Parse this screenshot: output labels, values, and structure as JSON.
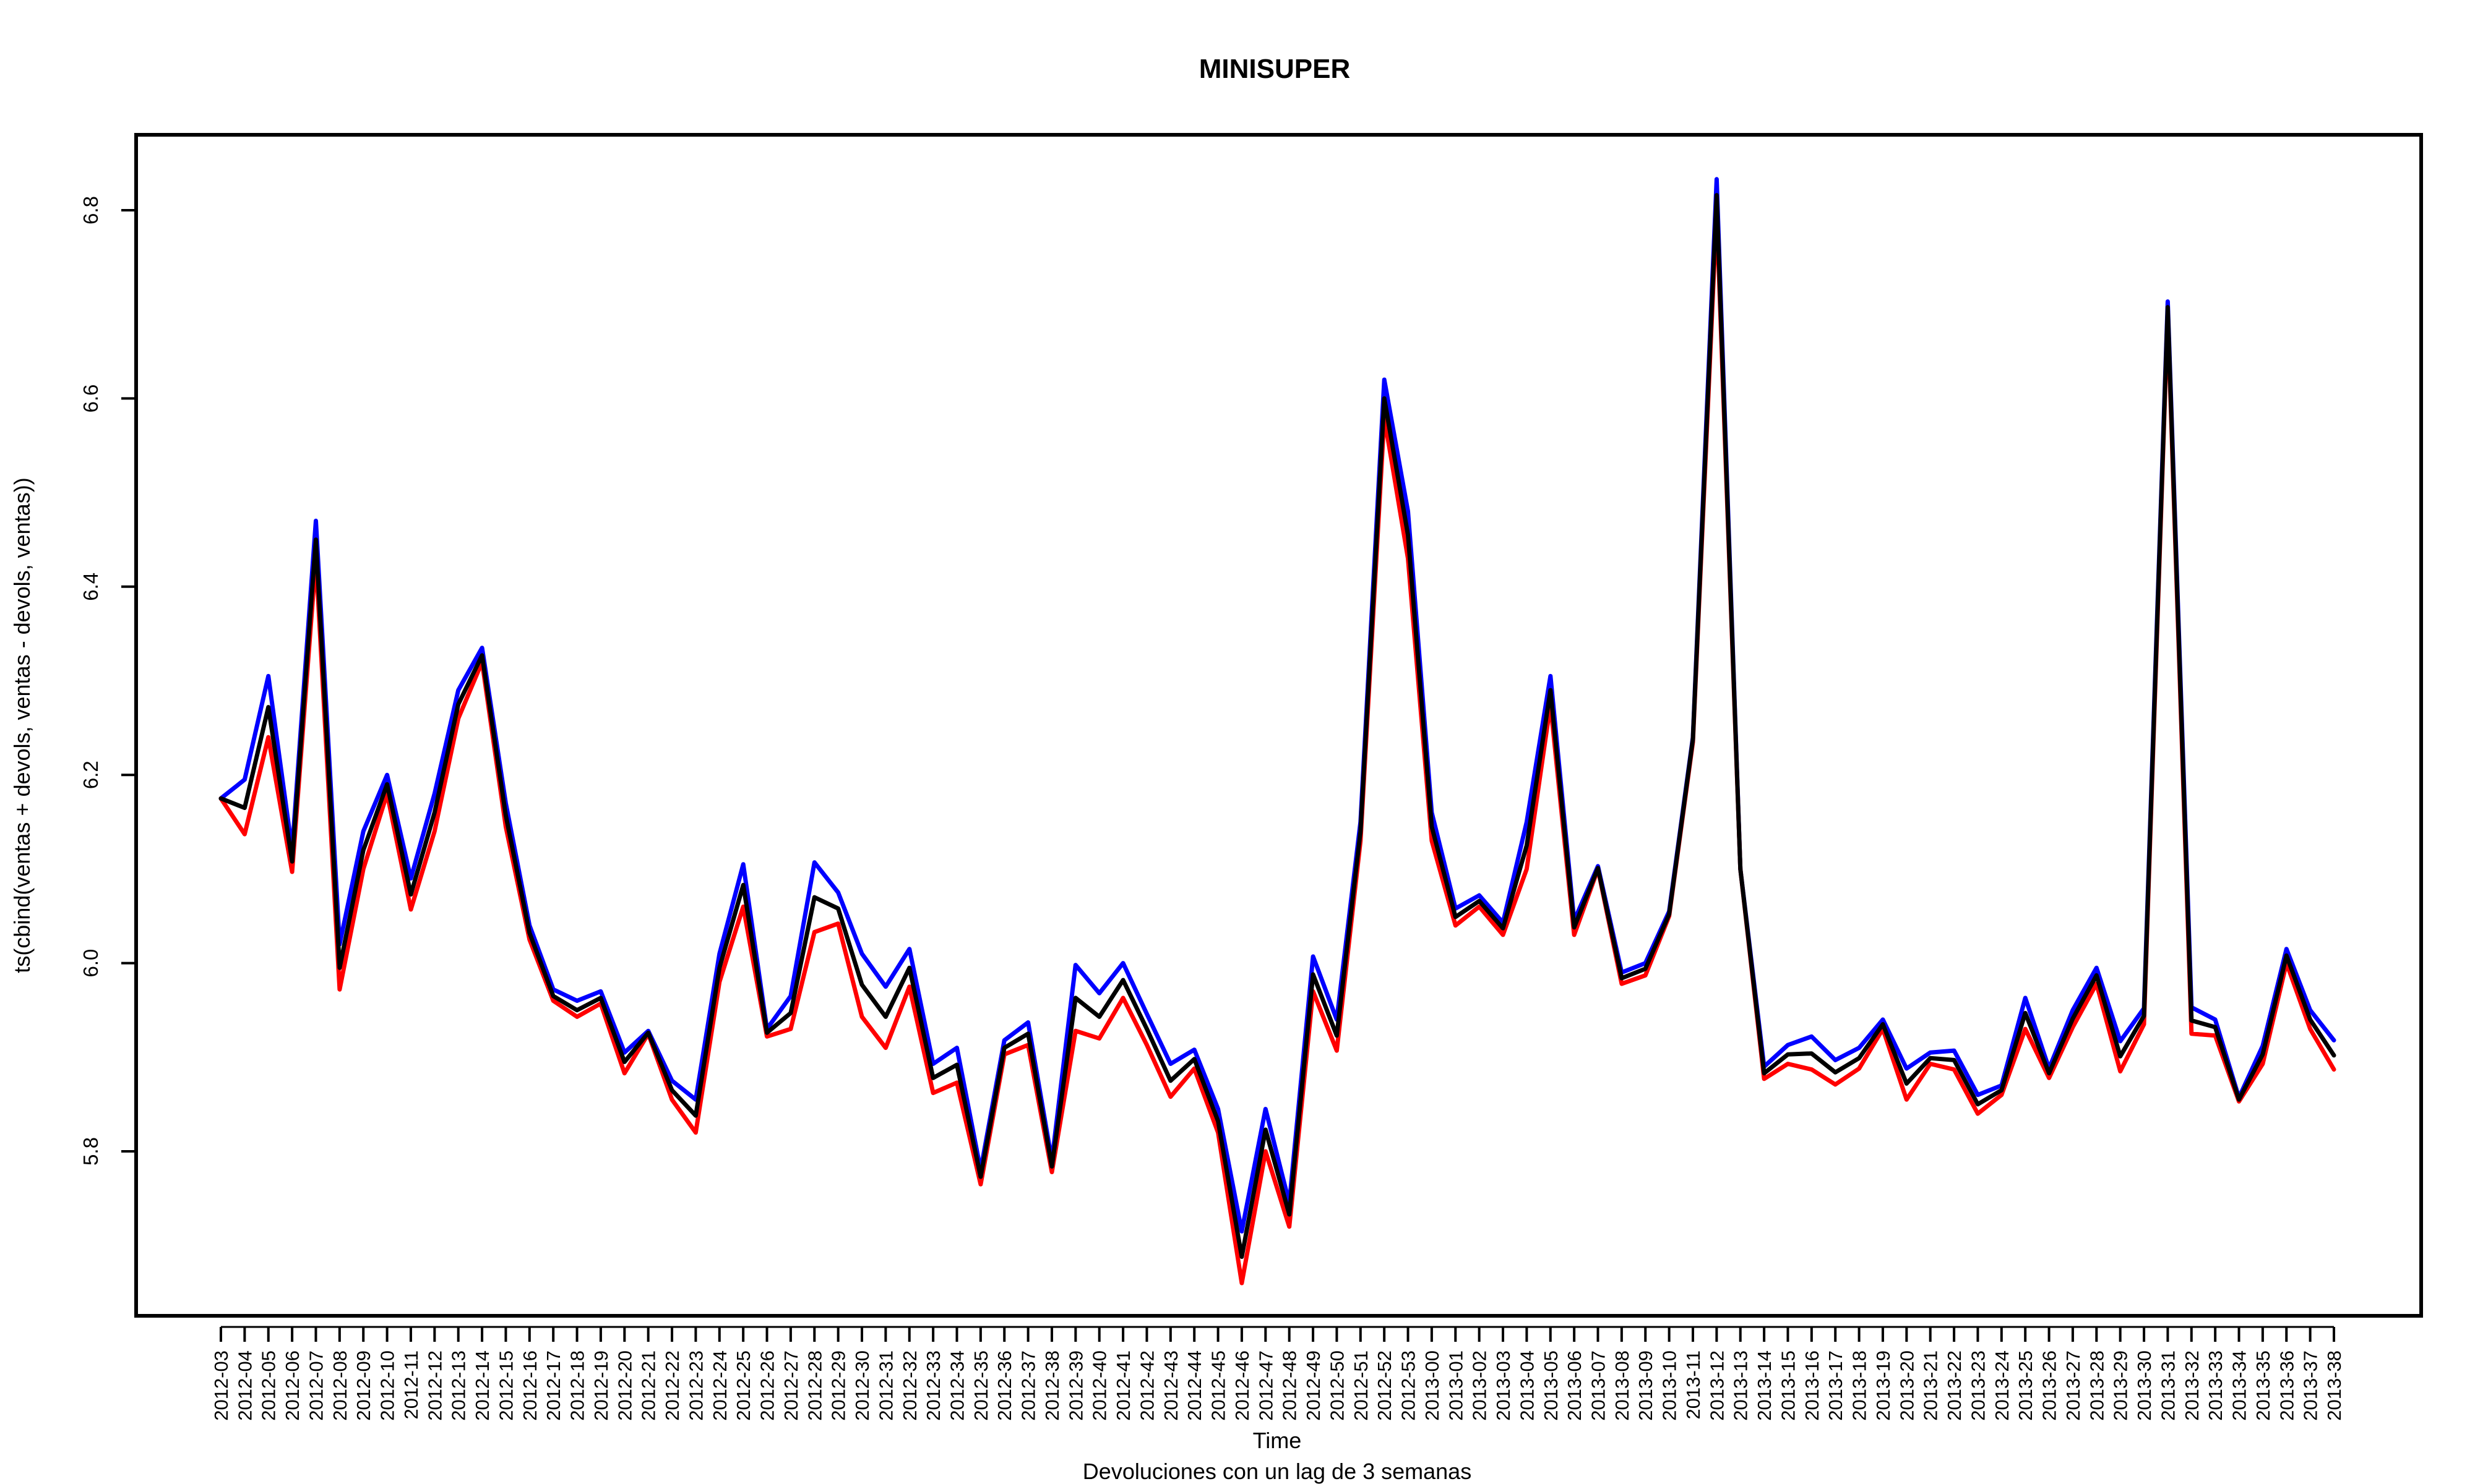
{
  "chart_data": {
    "type": "line",
    "title": "MINISUPER",
    "xlabel": "Time",
    "subtitle": "Devoluciones con un lag de 3 semanas",
    "ylabel": "ts(cbind(ventas + devols, ventas - devols, ventas))",
    "ylim": [
      5.63,
      6.87
    ],
    "yticks": [
      5.8,
      6.0,
      6.2,
      6.4,
      6.6,
      6.8
    ],
    "ytick_labels": [
      "5.8",
      "6.0",
      "6.2",
      "6.4",
      "6.6",
      "6.8"
    ],
    "grid": false,
    "categories": [
      "2012-03",
      "2012-04",
      "2012-05",
      "2012-06",
      "2012-07",
      "2012-08",
      "2012-09",
      "2012-10",
      "2012-11",
      "2012-12",
      "2012-13",
      "2012-14",
      "2012-15",
      "2012-16",
      "2012-17",
      "2012-18",
      "2012-19",
      "2012-20",
      "2012-21",
      "2012-22",
      "2012-23",
      "2012-24",
      "2012-25",
      "2012-26",
      "2012-27",
      "2012-28",
      "2012-29",
      "2012-30",
      "2012-31",
      "2012-32",
      "2012-33",
      "2012-34",
      "2012-35",
      "2012-36",
      "2012-37",
      "2012-38",
      "2012-39",
      "2012-40",
      "2012-41",
      "2012-42",
      "2012-43",
      "2012-44",
      "2012-45",
      "2012-46",
      "2012-47",
      "2012-48",
      "2012-49",
      "2012-50",
      "2012-51",
      "2012-52",
      "2012-53",
      "2013-00",
      "2013-01",
      "2013-02",
      "2013-03",
      "2013-04",
      "2013-05",
      "2013-06",
      "2013-07",
      "2013-08",
      "2013-09",
      "2013-10",
      "2013-11",
      "2013-12",
      "2013-13",
      "2013-14",
      "2013-15",
      "2013-16",
      "2013-17",
      "2013-18",
      "2013-19",
      "2013-20",
      "2013-21",
      "2013-22",
      "2013-23",
      "2013-24",
      "2013-25",
      "2013-26",
      "2013-27",
      "2013-28",
      "2013-29",
      "2013-30",
      "2013-31",
      "2013-32",
      "2013-33",
      "2013-34",
      "2013-35",
      "2013-36",
      "2013-37",
      "2013-38"
    ],
    "series": [
      {
        "color": "#0000ff",
        "values": [
          6.175,
          6.195,
          6.305,
          6.12,
          6.47,
          6.02,
          6.14,
          6.2,
          6.09,
          6.18,
          6.29,
          6.335,
          6.17,
          6.04,
          5.972,
          5.96,
          5.97,
          5.905,
          5.928,
          5.875,
          5.855,
          6.01,
          6.105,
          5.93,
          5.965,
          6.107,
          6.075,
          6.01,
          5.975,
          6.015,
          5.893,
          5.91,
          5.78,
          5.918,
          5.937,
          5.79,
          5.998,
          5.968,
          6.0,
          5.946,
          5.893,
          5.908,
          5.845,
          5.715,
          5.845,
          5.745,
          6.007,
          5.94,
          6.15,
          6.62,
          6.48,
          6.16,
          6.058,
          6.072,
          6.043,
          6.15,
          6.305,
          6.045,
          6.103,
          5.99,
          6.0,
          6.055,
          6.24,
          6.833,
          6.1,
          5.89,
          5.913,
          5.922,
          5.897,
          5.91,
          5.94,
          5.888,
          5.905,
          5.907,
          5.86,
          5.87,
          5.963,
          5.888,
          5.95,
          5.995,
          5.917,
          5.952,
          6.703,
          5.953,
          5.94,
          5.857,
          5.912,
          6.015,
          5.95,
          5.918
        ]
      },
      {
        "color": "#ff0000",
        "values": [
          6.175,
          6.137,
          6.24,
          6.097,
          6.43,
          5.972,
          6.1,
          6.18,
          6.057,
          6.14,
          6.26,
          6.32,
          6.145,
          6.025,
          5.96,
          5.943,
          5.957,
          5.883,
          5.925,
          5.855,
          5.82,
          5.98,
          6.06,
          5.922,
          5.93,
          6.033,
          6.042,
          5.943,
          5.91,
          5.975,
          5.862,
          5.873,
          5.765,
          5.903,
          5.913,
          5.778,
          5.928,
          5.92,
          5.963,
          5.913,
          5.858,
          5.888,
          5.82,
          5.66,
          5.8,
          5.72,
          5.97,
          5.907,
          6.13,
          6.58,
          6.43,
          6.13,
          6.04,
          6.06,
          6.03,
          6.1,
          6.275,
          6.03,
          6.1,
          5.978,
          5.987,
          6.05,
          6.235,
          6.8,
          6.1,
          5.877,
          5.893,
          5.887,
          5.871,
          5.888,
          5.93,
          5.855,
          5.893,
          5.887,
          5.84,
          5.86,
          5.93,
          5.878,
          5.932,
          5.978,
          5.885,
          5.935,
          6.69,
          5.925,
          5.923,
          5.853,
          5.893,
          6.0,
          5.93,
          5.887
        ]
      },
      {
        "color": "#000000",
        "values": [
          6.175,
          6.165,
          6.272,
          6.108,
          6.45,
          5.995,
          6.12,
          6.19,
          6.073,
          6.16,
          6.275,
          6.327,
          6.157,
          6.032,
          5.965,
          5.95,
          5.963,
          5.895,
          5.926,
          5.865,
          5.838,
          5.995,
          6.083,
          5.926,
          5.947,
          6.07,
          6.058,
          5.977,
          5.943,
          5.995,
          5.878,
          5.892,
          5.773,
          5.91,
          5.925,
          5.784,
          5.963,
          5.943,
          5.982,
          5.93,
          5.875,
          5.898,
          5.832,
          5.688,
          5.823,
          5.733,
          5.988,
          5.923,
          6.14,
          6.6,
          6.455,
          6.145,
          6.049,
          6.066,
          6.037,
          6.125,
          6.29,
          6.038,
          6.101,
          5.984,
          5.994,
          6.052,
          6.238,
          6.816,
          6.1,
          5.883,
          5.903,
          5.904,
          5.884,
          5.899,
          5.935,
          5.872,
          5.899,
          5.897,
          5.85,
          5.865,
          5.947,
          5.883,
          5.941,
          5.987,
          5.901,
          5.944,
          6.697,
          5.939,
          5.932,
          5.855,
          5.903,
          6.008,
          5.94,
          5.902
        ]
      }
    ]
  }
}
